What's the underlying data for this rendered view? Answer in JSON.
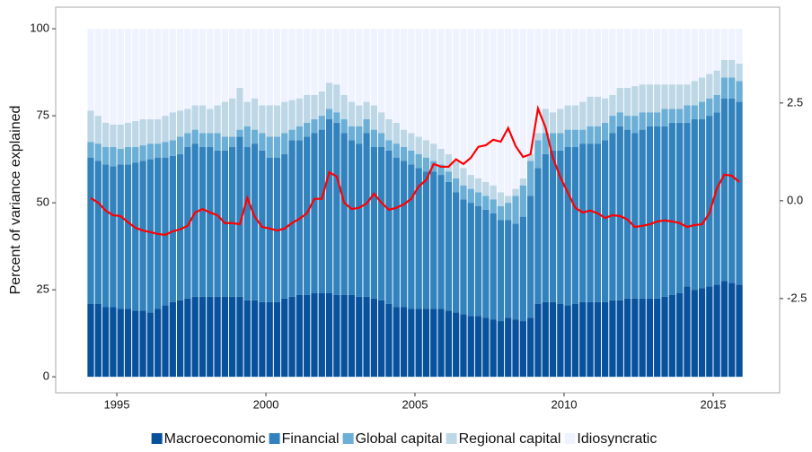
{
  "chart_data": {
    "type": "stacked_bar_line",
    "ylabel": "Percent of variance explained",
    "x": [
      1994,
      1994.25,
      1994.5,
      1994.75,
      1995,
      1995.25,
      1995.5,
      1995.75,
      1996,
      1996.25,
      1996.5,
      1996.75,
      1997,
      1997.25,
      1997.5,
      1997.75,
      1998,
      1998.25,
      1998.5,
      1998.75,
      1999,
      1999.25,
      1999.5,
      1999.75,
      2000,
      2000.25,
      2000.5,
      2000.75,
      2001,
      2001.25,
      2001.5,
      2001.75,
      2002,
      2002.25,
      2002.5,
      2002.75,
      2003,
      2003.25,
      2003.5,
      2003.75,
      2004,
      2004.25,
      2004.5,
      2004.75,
      2005,
      2005.25,
      2005.5,
      2005.75,
      2006,
      2006.25,
      2006.5,
      2006.75,
      2007,
      2007.25,
      2007.5,
      2007.75,
      2008,
      2008.25,
      2008.5,
      2008.75,
      2009,
      2009.25,
      2009.5,
      2009.75,
      2010,
      2010.25,
      2010.5,
      2010.75,
      2011,
      2011.25,
      2011.5,
      2011.75,
      2012,
      2012.25,
      2012.5,
      2012.75,
      2013,
      2013.25,
      2013.5,
      2013.75,
      2014,
      2014.25,
      2014.5,
      2014.75,
      2015,
      2015.25,
      2015.5,
      2015.75
    ],
    "series": [
      {
        "name": "Macroeconomic",
        "color": "#08519c",
        "values": [
          21,
          21,
          20,
          20,
          19.5,
          19.5,
          19,
          19,
          18.5,
          19.5,
          20.5,
          21.5,
          22,
          22.5,
          23,
          23,
          23,
          23,
          23,
          23,
          23,
          22,
          22,
          21.5,
          21.5,
          21.5,
          22.5,
          23,
          23.5,
          23.5,
          24,
          24,
          24,
          23.5,
          23.5,
          23.5,
          23,
          23,
          22.5,
          22,
          21,
          20,
          20,
          19.5,
          19.5,
          19.5,
          19.5,
          19.5,
          19,
          18.5,
          18,
          17.5,
          17.5,
          17,
          16.5,
          16,
          17,
          16.5,
          16,
          17,
          21,
          21.5,
          21.5,
          21,
          20.5,
          21,
          21.5,
          21.5,
          21.5,
          21.5,
          22,
          22,
          22.5,
          22.5,
          22.5,
          22.5,
          22.5,
          23,
          23.5,
          24,
          26,
          25,
          25.5,
          26,
          26.5,
          27.5,
          27,
          26.5
        ]
      },
      {
        "name": "Financial",
        "color": "#3182bd",
        "values": [
          42,
          41,
          41,
          40.5,
          41.5,
          41.5,
          42.5,
          43,
          44,
          43.5,
          42.5,
          42,
          42,
          43.5,
          44,
          43,
          43,
          42,
          42,
          43,
          46,
          44,
          45,
          43.5,
          41.5,
          41.5,
          41.5,
          45,
          44.5,
          45.5,
          46,
          47,
          50,
          49.5,
          46.5,
          44.5,
          44,
          47,
          43.5,
          44,
          44,
          43,
          42,
          41.5,
          40.5,
          39.5,
          39.5,
          38.5,
          37,
          34.5,
          33,
          32.5,
          31.5,
          31,
          30.5,
          29,
          28,
          27.5,
          30,
          35,
          39,
          42.5,
          43.5,
          44,
          45.5,
          45,
          45.5,
          45.5,
          45.5,
          46.5,
          48,
          50,
          48.5,
          47.5,
          48.5,
          49.5,
          49.5,
          49,
          49.5,
          49,
          47,
          49,
          48.5,
          49,
          49.5,
          52.5,
          53,
          52.5
        ]
      },
      {
        "name": "Global capital",
        "color": "#6baed6",
        "values": [
          4.5,
          5,
          5,
          5.5,
          4.5,
          5,
          4.5,
          4.5,
          4.5,
          4,
          4.5,
          4.5,
          5,
          4,
          4,
          4,
          4,
          5,
          4,
          3,
          2,
          6,
          4,
          5,
          6,
          6,
          6,
          3,
          4,
          4,
          4,
          4,
          3,
          3,
          4,
          4,
          5,
          4,
          5,
          4,
          3,
          4,
          4,
          4,
          4,
          4,
          3,
          3,
          3,
          4,
          4,
          4,
          4,
          4,
          4,
          4,
          5,
          8,
          9,
          10,
          8,
          6,
          5,
          5,
          5,
          5,
          4,
          5,
          5,
          5,
          5,
          4,
          4,
          5,
          5,
          4,
          4,
          5,
          4,
          4,
          5,
          4,
          5,
          5,
          5,
          6,
          6,
          6
        ]
      },
      {
        "name": "Regional capital",
        "color": "#bdd7e7",
        "values": [
          9,
          8,
          7,
          6.5,
          7,
          7,
          7.5,
          7.5,
          7,
          7,
          7.5,
          8,
          7.5,
          7,
          7,
          8,
          7,
          8,
          10,
          11,
          12,
          7,
          9,
          8,
          9,
          9,
          9,
          8.5,
          8,
          8,
          7,
          7,
          7.5,
          8,
          7,
          7,
          6,
          5,
          7,
          6,
          6,
          6,
          5,
          5,
          5,
          5,
          5,
          4.5,
          5,
          5,
          5,
          4,
          4,
          4,
          4,
          4,
          2,
          2,
          2,
          2,
          2,
          7,
          6,
          7,
          7,
          7,
          8,
          8.5,
          8.5,
          7,
          6,
          7,
          8,
          8.5,
          8,
          8,
          8,
          7,
          7,
          7,
          6,
          7,
          7,
          7,
          7,
          5,
          5,
          5
        ]
      },
      {
        "name": "Idiosyncratic",
        "color": "#eff3ff",
        "values": [
          23.5,
          25,
          27,
          27.5,
          27.5,
          27,
          26.5,
          26,
          26,
          26,
          25,
          24,
          23.5,
          23,
          22,
          22,
          23,
          22,
          21,
          20,
          17,
          21,
          20,
          22,
          22,
          22,
          21,
          20.5,
          20,
          19,
          19,
          18,
          15.5,
          16,
          19,
          21,
          22,
          21,
          22,
          24,
          26,
          27,
          29,
          30,
          31,
          32,
          33,
          34.5,
          36,
          38,
          40,
          42,
          43,
          44,
          45,
          47,
          48,
          46,
          43,
          36,
          30,
          23,
          24,
          23,
          22,
          22,
          21,
          19.5,
          19.5,
          20,
          19,
          17,
          17,
          16.5,
          16,
          16,
          16,
          16,
          16,
          16,
          16,
          15,
          14,
          13,
          12,
          9,
          9,
          10
        ]
      },
      {
        "name": "",
        "color": "#ff0000",
        "axis": "y2",
        "values": [
          0.07,
          -0.05,
          -0.25,
          -0.37,
          -0.39,
          -0.55,
          -0.69,
          -0.76,
          -0.8,
          -0.85,
          -0.87,
          -0.78,
          -0.73,
          -0.64,
          -0.3,
          -0.21,
          -0.3,
          -0.37,
          -0.57,
          -0.57,
          -0.6,
          0.07,
          -0.41,
          -0.67,
          -0.71,
          -0.76,
          -0.71,
          -0.57,
          -0.46,
          -0.32,
          0.05,
          0.05,
          0.73,
          0.62,
          -0.05,
          -0.21,
          -0.18,
          -0.07,
          0.18,
          -0.05,
          -0.23,
          -0.18,
          -0.09,
          0.05,
          0.37,
          0.53,
          0.94,
          0.87,
          0.87,
          1.06,
          0.94,
          1.1,
          1.38,
          1.42,
          1.56,
          1.51,
          1.86,
          1.4,
          1.12,
          1.19,
          2.36,
          1.88,
          1.1,
          0.6,
          0.21,
          -0.18,
          -0.3,
          -0.25,
          -0.32,
          -0.44,
          -0.37,
          -0.39,
          -0.48,
          -0.67,
          -0.64,
          -0.6,
          -0.53,
          -0.5,
          -0.53,
          -0.57,
          -0.67,
          -0.62,
          -0.6,
          -0.32,
          0.32,
          0.67,
          0.64,
          0.48
        ]
      }
    ],
    "xlim": [
      1992.95,
      2017.23
    ],
    "xticks": [
      1995,
      2000,
      2005,
      2010,
      2015
    ],
    "ylim": [
      -4.6,
      106.2
    ],
    "yticks": [
      0,
      25,
      50,
      75,
      100
    ],
    "y2lim": [
      -4.91,
      4.95
    ],
    "y2ticks": [
      -2.5,
      {
        "value": 0,
        "label": "0.0"
      },
      2.5
    ],
    "legend": "bottom"
  }
}
